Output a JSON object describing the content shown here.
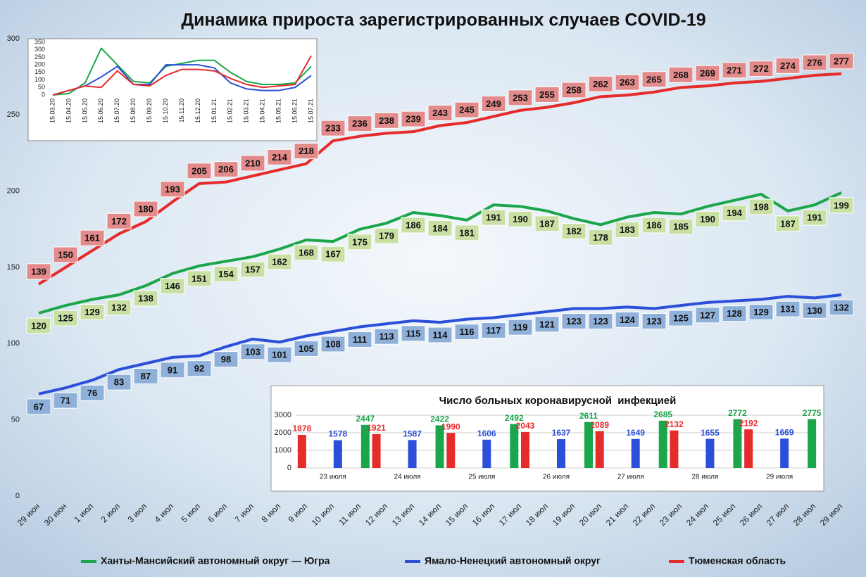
{
  "chart_data": [
    {
      "type": "line",
      "title": "Динамика прироста зарегистрированных случаев COVID-19",
      "categories": [
        "29 июн",
        "30 июн",
        "1 июл",
        "2 июл",
        "3 июл",
        "4 июл",
        "5 июл",
        "6 июл",
        "7 июл",
        "8 июл",
        "9 июл",
        "10 июл",
        "11 июл",
        "12 июл",
        "13 июл",
        "14 июл",
        "15 июл",
        "16 июл",
        "17 июл",
        "18 июл",
        "19 июл",
        "20 июл",
        "21 июл",
        "22 июл",
        "23 июл",
        "24 июл",
        "25 июл",
        "26 июл",
        "27 июл",
        "28 июл",
        "29 июл"
      ],
      "series": [
        {
          "name": "Ханты-Мансийский автономный округ — Югра",
          "color": "#1ba64b",
          "label_color": "#c9e0a4",
          "values": [
            120,
            125,
            129,
            132,
            138,
            146,
            151,
            154,
            157,
            162,
            168,
            167,
            175,
            179,
            186,
            184,
            181,
            191,
            190,
            187,
            182,
            178,
            183,
            186,
            185,
            190,
            194,
            198,
            187,
            191,
            199
          ]
        },
        {
          "name": "Ямало-Ненецкий автономный округ",
          "color": "#2b4fd8",
          "label_color": "#8fb0d8",
          "values": [
            67,
            71,
            76,
            83,
            87,
            91,
            92,
            98,
            103,
            101,
            105,
            108,
            111,
            113,
            115,
            114,
            116,
            117,
            119,
            121,
            123,
            123,
            124,
            123,
            125,
            127,
            128,
            129,
            131,
            130,
            132
          ]
        },
        {
          "name": "Тюменская область",
          "color": "#e62b2b",
          "label_color": "#e38a8a",
          "values": [
            139,
            150,
            161,
            172,
            180,
            193,
            205,
            206,
            210,
            214,
            218,
            233,
            236,
            238,
            239,
            243,
            245,
            249,
            253,
            255,
            258,
            262,
            263,
            265,
            268,
            269,
            271,
            272,
            274,
            276,
            277
          ]
        }
      ],
      "ylim": [
        0,
        300
      ],
      "yticks": [
        0,
        50,
        100,
        150,
        200,
        250,
        300
      ],
      "grid": false
    },
    {
      "type": "line",
      "categories": [
        "15.03.20",
        "15.04.20",
        "15.05.20",
        "15.06.20",
        "15.07.20",
        "15.08.20",
        "15.09.20",
        "15.10.20",
        "15.11.20",
        "15.12.20",
        "15.01.21",
        "15.02.21",
        "15.03.21",
        "15.04.21",
        "15.05.21",
        "15.06.21",
        "15.07.21"
      ],
      "series": [
        {
          "color": "#1ba64b",
          "values": [
            0,
            10,
            80,
            310,
            200,
            90,
            80,
            190,
            210,
            230,
            230,
            150,
            90,
            70,
            70,
            80,
            190
          ]
        },
        {
          "color": "#2b4fd8",
          "values": [
            0,
            30,
            60,
            120,
            190,
            70,
            70,
            200,
            200,
            200,
            180,
            80,
            40,
            30,
            30,
            50,
            130
          ]
        },
        {
          "color": "#e62b2b",
          "values": [
            0,
            30,
            60,
            50,
            160,
            70,
            60,
            130,
            170,
            170,
            160,
            110,
            70,
            50,
            60,
            70,
            260
          ]
        }
      ],
      "ylim": [
        0,
        350
      ],
      "yticks": [
        0,
        50,
        100,
        150,
        200,
        250,
        300,
        350
      ],
      "grid": false
    },
    {
      "type": "bar",
      "title": "Число больных коронавирусной  инфекцией",
      "categories": [
        "23 июля",
        "24 июля",
        "25 июля",
        "26 июля",
        "27 июля",
        "28 июля",
        "29 июля"
      ],
      "series": [
        {
          "color": "#e62b2b",
          "values": [
            1878,
            1921,
            1990,
            2043,
            2089,
            2132,
            2192
          ]
        },
        {
          "color": "#2b4fd8",
          "values": [
            1578,
            1587,
            1606,
            1637,
            1649,
            1655,
            1669
          ]
        },
        {
          "color": "#1ba64b",
          "values": [
            2447,
            2422,
            2492,
            2611,
            2685,
            2772,
            2775
          ]
        }
      ],
      "ylim": [
        0,
        3000
      ],
      "yticks": [
        0,
        1000,
        2000,
        3000
      ],
      "grid": true
    }
  ]
}
